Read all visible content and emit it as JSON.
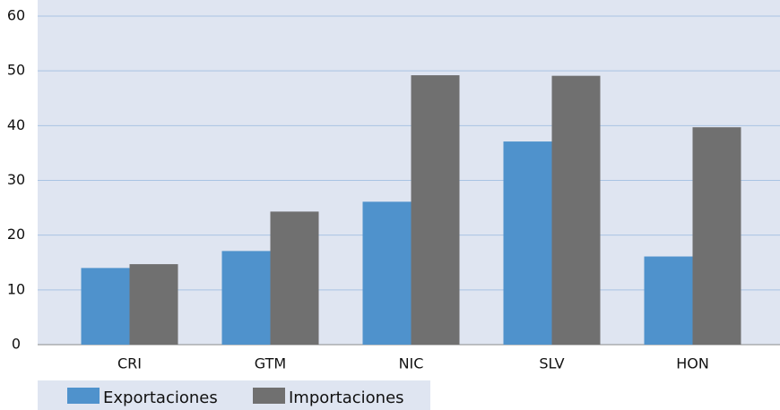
{
  "chart_data": {
    "type": "bar",
    "categories": [
      "CRI",
      "GTM",
      "NIC",
      "SLV",
      "HON"
    ],
    "series": [
      {
        "name": "Exportaciones",
        "color": "#4f92cc",
        "values": [
          14,
          17.1,
          26.1,
          37.1,
          16.1
        ]
      },
      {
        "name": "Importaciones",
        "color": "#707070",
        "values": [
          14.7,
          24.3,
          49.2,
          49.1,
          39.7
        ]
      }
    ],
    "ylim": [
      0,
      60
    ],
    "yticks": [
      0,
      10,
      20,
      30,
      40,
      50,
      60
    ],
    "grid": true,
    "legend": "bottom-left"
  }
}
